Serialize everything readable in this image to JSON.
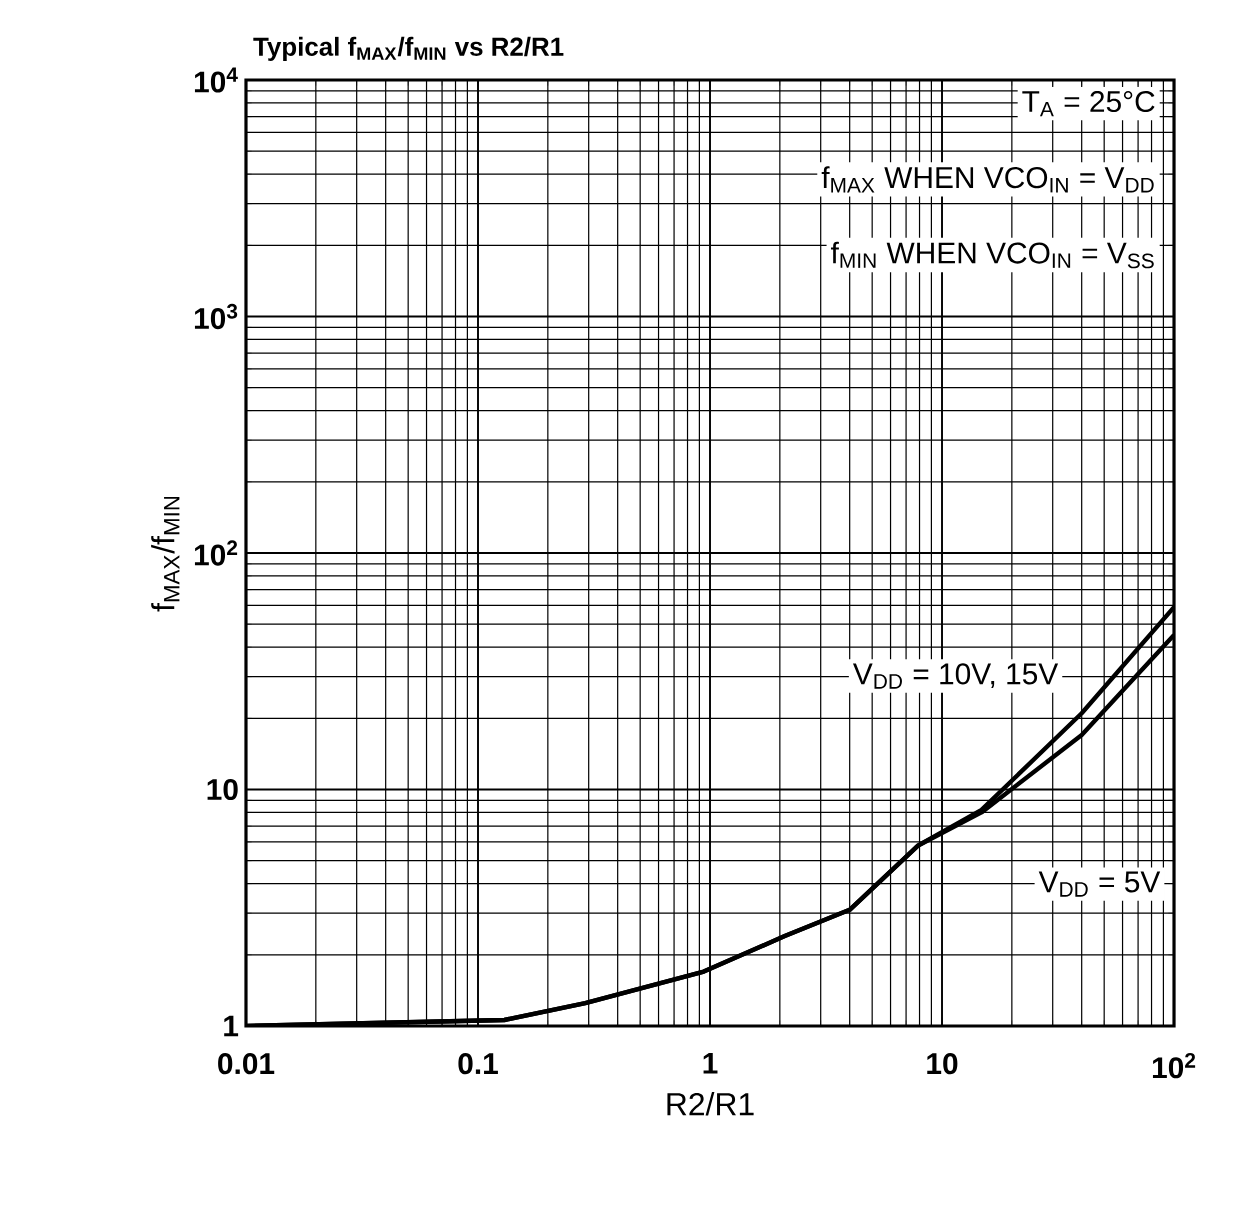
{
  "chart_data": {
    "type": "line",
    "title": "Typical f$_{MAX}$/f$_{MIN}$ vs R2/R1",
    "xlabel": "R2/R1",
    "ylabel": "f$_{MAX}$/f$_{MIN}$",
    "log": "xy",
    "grid": true,
    "marker": "none",
    "line_style": "solid",
    "xlim": [
      0.01,
      100
    ],
    "ylim": [
      1,
      10000
    ],
    "xticks": [
      0.01,
      0.1,
      1,
      10,
      {
        "value": 100,
        "label": "10$^{2}$"
      }
    ],
    "yticks": [
      1,
      10,
      {
        "value": 100,
        "label": "10$^{2}$"
      },
      {
        "value": 1000,
        "label": "10$^{3}$"
      },
      {
        "value": 10000,
        "label": "10$^{4}$"
      }
    ],
    "x": [
      0.01,
      0.13,
      0.29,
      0.94,
      2.1,
      4.0,
      7.9,
      14.8,
      40,
      100
    ],
    "series": [
      {
        "name": "V$_{DD}$ = 10V, 15V",
        "color": "#000000",
        "values": [
          1,
          1.06,
          1.25,
          1.7,
          2.4,
          3.1,
          5.8,
          8.2,
          21,
          59
        ]
      },
      {
        "name": "V$_{DD}$ = 5V",
        "color": "#000000",
        "values": [
          1,
          1.06,
          1.25,
          1.7,
          2.4,
          3.1,
          5.8,
          8.0,
          17,
          45
        ]
      }
    ],
    "annotations": [
      "T$_{A}$ = 25°C",
      "f$_{MAX}$ WHEN VCO$_{IN}$ = V$_{DD}$",
      "f$_{MIN}$ WHEN VCO$_{IN}$ = V$_{SS}$"
    ]
  }
}
